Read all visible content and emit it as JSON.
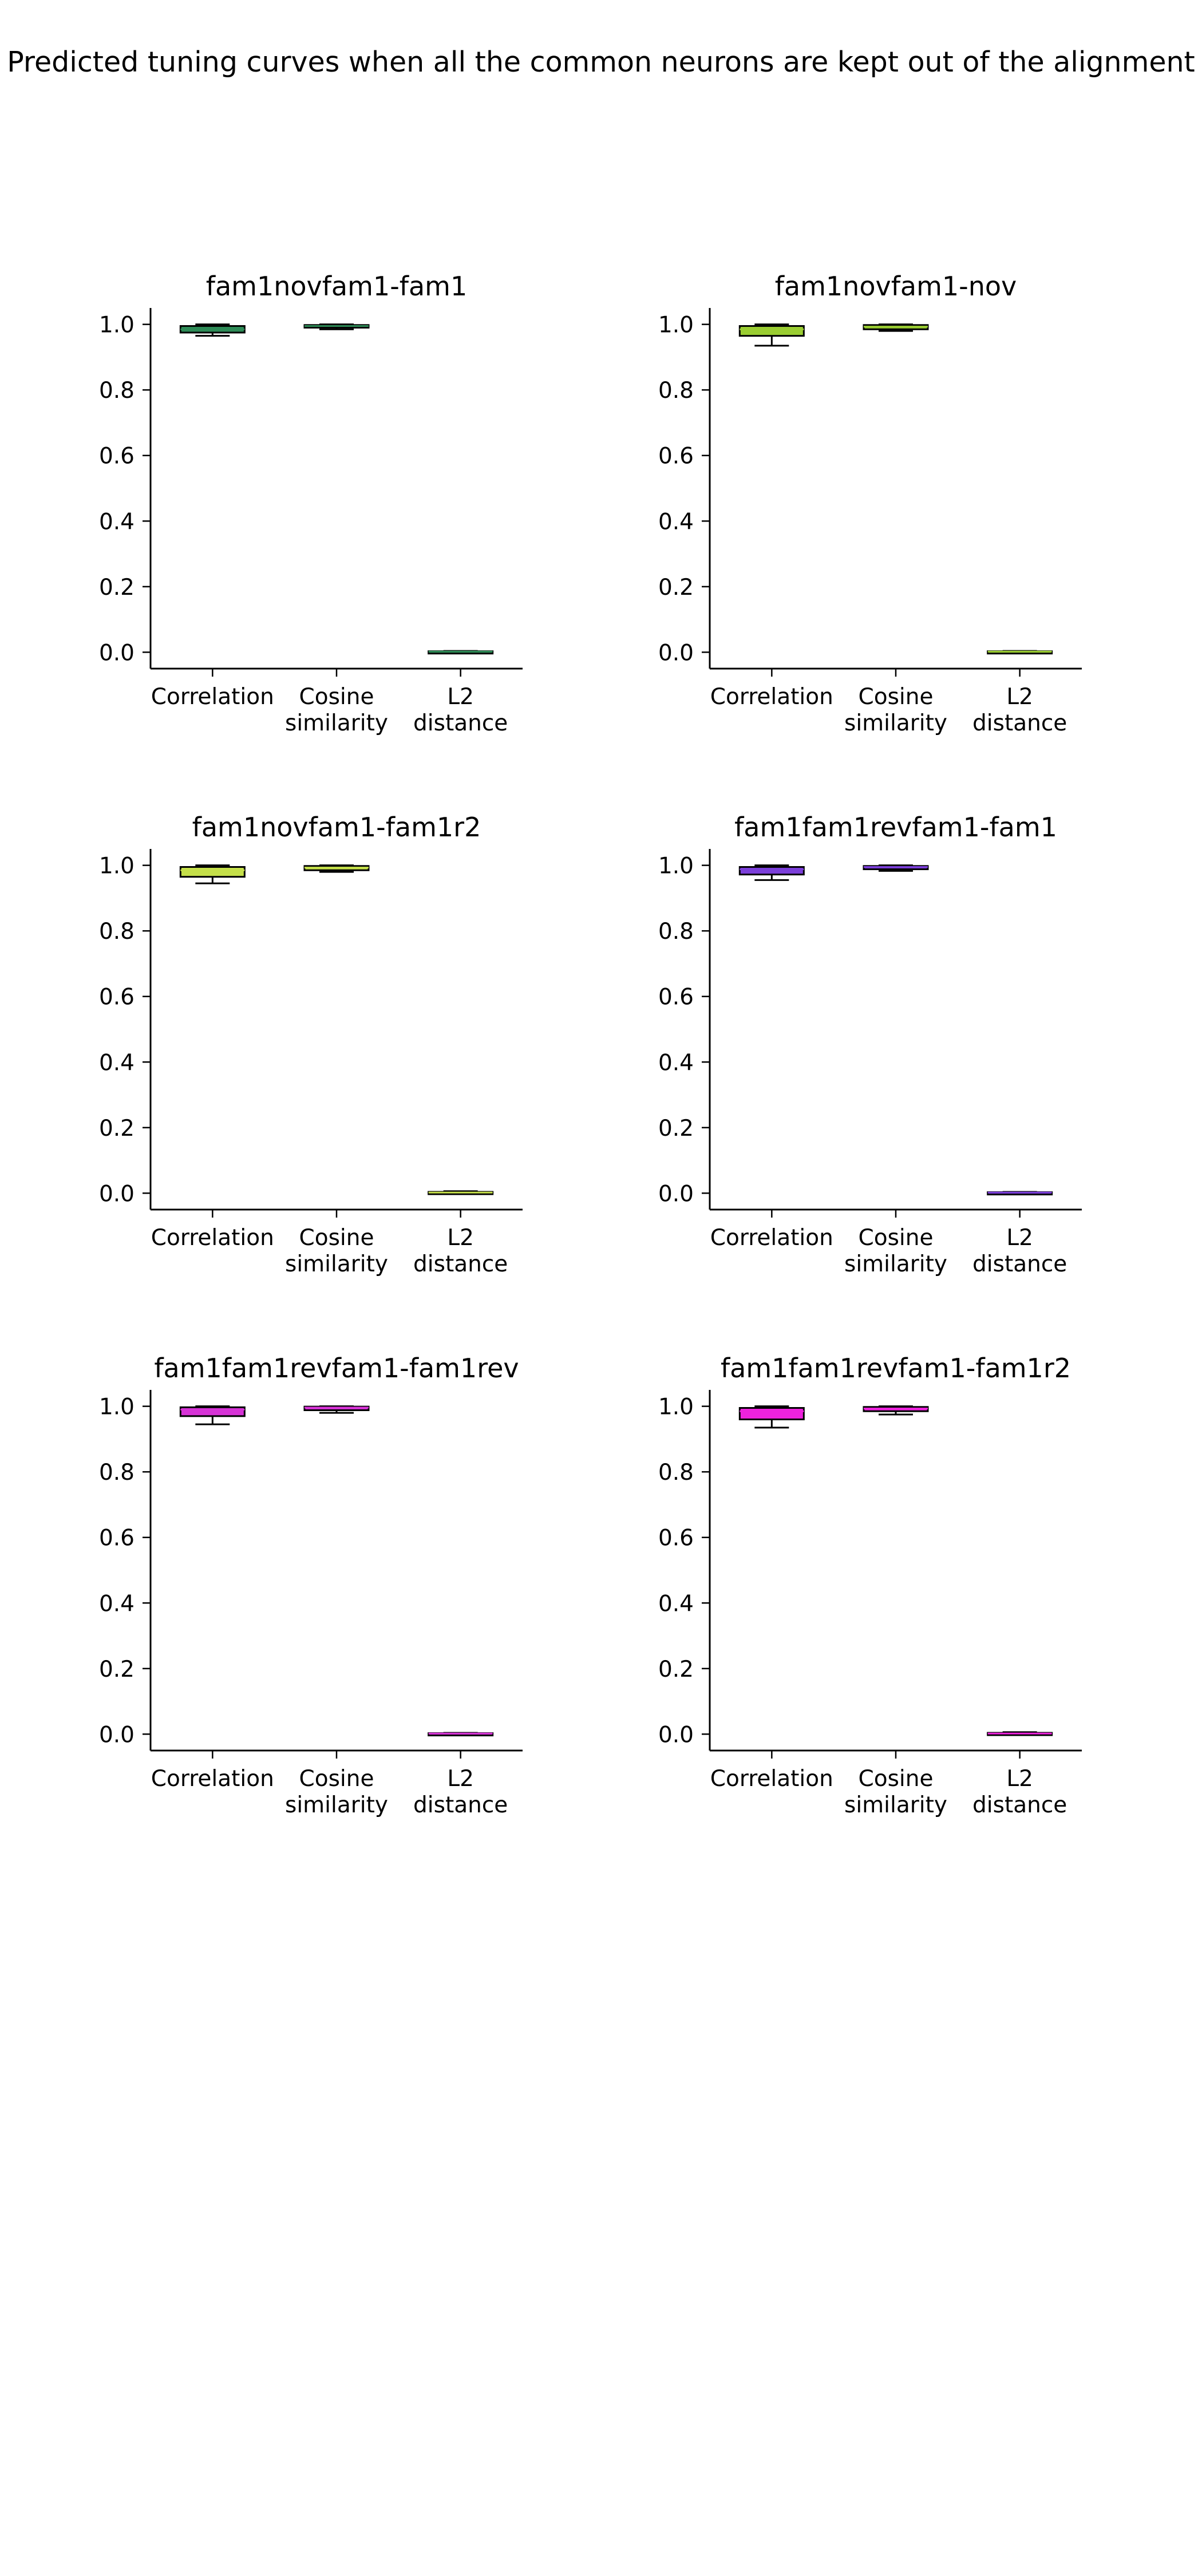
{
  "figure": {
    "suptitle": "Predicted tuning curves when all the common neurons are kept out of the alignment"
  },
  "chart_data": [
    {
      "type": "box",
      "title": "fam1novfam1-fam1",
      "color": "#2e8b57",
      "categories": [
        [
          "Correlation"
        ],
        [
          "Cosine",
          "similarity"
        ],
        [
          "L2",
          "distance"
        ]
      ],
      "ylim": [
        -0.05,
        1.05
      ],
      "yticks": [
        "0.0",
        "0.2",
        "0.4",
        "0.6",
        "0.8",
        "1.0"
      ],
      "ytick_values": [
        0.0,
        0.2,
        0.4,
        0.6,
        0.8,
        1.0
      ],
      "grid": false,
      "boxes": [
        {
          "whislo": 0.965,
          "q1": 0.975,
          "med": 0.985,
          "q3": 0.995,
          "whishi": 1.0
        },
        {
          "whislo": 0.985,
          "q1": 0.99,
          "med": 0.995,
          "q3": 0.998,
          "whishi": 1.0
        },
        {
          "whislo": 0.0,
          "q1": 0.001,
          "med": 0.002,
          "q3": 0.003,
          "whishi": 0.004
        }
      ]
    },
    {
      "type": "box",
      "title": "fam1novfam1-nov",
      "color": "#9acd32",
      "categories": [
        [
          "Correlation"
        ],
        [
          "Cosine",
          "similarity"
        ],
        [
          "L2",
          "distance"
        ]
      ],
      "ylim": [
        -0.05,
        1.05
      ],
      "yticks": [
        "0.0",
        "0.2",
        "0.4",
        "0.6",
        "0.8",
        "1.0"
      ],
      "ytick_values": [
        0.0,
        0.2,
        0.4,
        0.6,
        0.8,
        1.0
      ],
      "grid": false,
      "boxes": [
        {
          "whislo": 0.935,
          "q1": 0.965,
          "med": 0.985,
          "q3": 0.995,
          "whishi": 1.0
        },
        {
          "whislo": 0.98,
          "q1": 0.985,
          "med": 0.993,
          "q3": 0.998,
          "whishi": 1.0
        },
        {
          "whislo": 0.0,
          "q1": 0.001,
          "med": 0.002,
          "q3": 0.003,
          "whishi": 0.004
        }
      ]
    },
    {
      "type": "box",
      "title": "fam1novfam1-fam1r2",
      "color": "#c5e04a",
      "categories": [
        [
          "Correlation"
        ],
        [
          "Cosine",
          "similarity"
        ],
        [
          "L2",
          "distance"
        ]
      ],
      "ylim": [
        -0.05,
        1.05
      ],
      "yticks": [
        "0.0",
        "0.2",
        "0.4",
        "0.6",
        "0.8",
        "1.0"
      ],
      "ytick_values": [
        0.0,
        0.2,
        0.4,
        0.6,
        0.8,
        1.0
      ],
      "grid": false,
      "boxes": [
        {
          "whislo": 0.945,
          "q1": 0.965,
          "med": 0.985,
          "q3": 0.995,
          "whishi": 1.0
        },
        {
          "whislo": 0.98,
          "q1": 0.985,
          "med": 0.993,
          "q3": 0.998,
          "whishi": 1.0
        },
        {
          "whislo": 0.0,
          "q1": 0.001,
          "med": 0.002,
          "q3": 0.004,
          "whishi": 0.006
        }
      ]
    },
    {
      "type": "box",
      "title": "fam1fam1revfam1-fam1",
      "color": "#7b3fd9",
      "categories": [
        [
          "Correlation"
        ],
        [
          "Cosine",
          "similarity"
        ],
        [
          "L2",
          "distance"
        ]
      ],
      "ylim": [
        -0.05,
        1.05
      ],
      "yticks": [
        "0.0",
        "0.2",
        "0.4",
        "0.6",
        "0.8",
        "1.0"
      ],
      "ytick_values": [
        0.0,
        0.2,
        0.4,
        0.6,
        0.8,
        1.0
      ],
      "grid": false,
      "boxes": [
        {
          "whislo": 0.955,
          "q1": 0.972,
          "med": 0.988,
          "q3": 0.995,
          "whishi": 1.0
        },
        {
          "whislo": 0.983,
          "q1": 0.988,
          "med": 0.995,
          "q3": 0.998,
          "whishi": 1.0
        },
        {
          "whislo": 0.0,
          "q1": 0.001,
          "med": 0.002,
          "q3": 0.003,
          "whishi": 0.004
        }
      ]
    },
    {
      "type": "box",
      "title": "fam1fam1revfam1-fam1rev",
      "color": "#d633d6",
      "categories": [
        [
          "Correlation"
        ],
        [
          "Cosine",
          "similarity"
        ],
        [
          "L2",
          "distance"
        ]
      ],
      "ylim": [
        -0.05,
        1.05
      ],
      "yticks": [
        "0.0",
        "0.2",
        "0.4",
        "0.6",
        "0.8",
        "1.0"
      ],
      "ytick_values": [
        0.0,
        0.2,
        0.4,
        0.6,
        0.8,
        1.0
      ],
      "grid": false,
      "boxes": [
        {
          "whislo": 0.945,
          "q1": 0.97,
          "med": 0.99,
          "q3": 0.997,
          "whishi": 1.0
        },
        {
          "whislo": 0.98,
          "q1": 0.988,
          "med": 0.996,
          "q3": 0.999,
          "whishi": 1.0
        },
        {
          "whislo": 0.0,
          "q1": 0.001,
          "med": 0.002,
          "q3": 0.003,
          "whishi": 0.004
        }
      ]
    },
    {
      "type": "box",
      "title": "fam1fam1revfam1-fam1r2",
      "color": "#ee22dd",
      "categories": [
        [
          "Correlation"
        ],
        [
          "Cosine",
          "similarity"
        ],
        [
          "L2",
          "distance"
        ]
      ],
      "ylim": [
        -0.05,
        1.05
      ],
      "yticks": [
        "0.0",
        "0.2",
        "0.4",
        "0.6",
        "0.8",
        "1.0"
      ],
      "ytick_values": [
        0.0,
        0.2,
        0.4,
        0.6,
        0.8,
        1.0
      ],
      "grid": false,
      "boxes": [
        {
          "whislo": 0.935,
          "q1": 0.96,
          "med": 0.985,
          "q3": 0.995,
          "whishi": 1.0
        },
        {
          "whislo": 0.975,
          "q1": 0.985,
          "med": 0.993,
          "q3": 0.998,
          "whishi": 1.0
        },
        {
          "whislo": 0.0,
          "q1": 0.001,
          "med": 0.002,
          "q3": 0.004,
          "whishi": 0.006
        }
      ]
    }
  ]
}
